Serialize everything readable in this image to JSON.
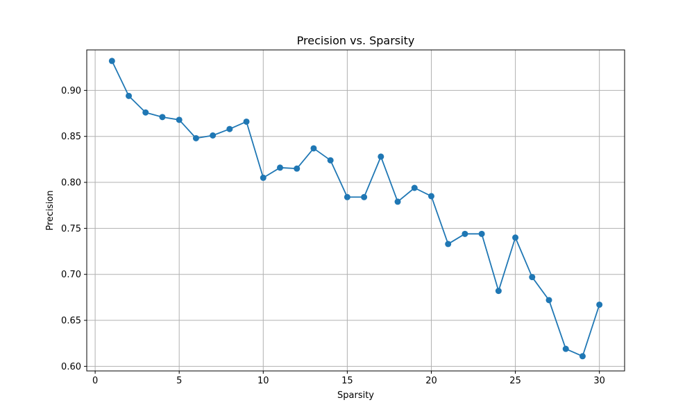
{
  "chart_data": {
    "type": "line",
    "title": "Precision vs. Sparsity",
    "xlabel": "Sparsity",
    "ylabel": "Precision",
    "xlim": [
      -0.5,
      31.5
    ],
    "ylim": [
      0.595,
      0.944
    ],
    "grid": true,
    "x_ticks": [
      0,
      5,
      10,
      15,
      20,
      25,
      30
    ],
    "y_ticks": [
      0.6,
      0.65,
      0.7,
      0.75,
      0.8,
      0.85,
      0.9
    ],
    "x_tick_labels": [
      "0",
      "5",
      "10",
      "15",
      "20",
      "25",
      "30"
    ],
    "y_tick_labels": [
      "0.60",
      "0.65",
      "0.70",
      "0.75",
      "0.80",
      "0.85",
      "0.90"
    ],
    "series": [
      {
        "color": "#1f77b4",
        "marker": "circle",
        "x": [
          1,
          2,
          3,
          4,
          5,
          6,
          7,
          8,
          9,
          10,
          11,
          12,
          13,
          14,
          15,
          16,
          17,
          18,
          19,
          20,
          21,
          22,
          23,
          24,
          25,
          26,
          27,
          28,
          29,
          30
        ],
        "y": [
          0.932,
          0.894,
          0.876,
          0.871,
          0.868,
          0.848,
          0.851,
          0.858,
          0.866,
          0.805,
          0.816,
          0.815,
          0.837,
          0.824,
          0.784,
          0.784,
          0.828,
          0.779,
          0.794,
          0.785,
          0.733,
          0.744,
          0.744,
          0.682,
          0.74,
          0.697,
          0.672,
          0.619,
          0.611,
          0.667
        ]
      }
    ]
  }
}
